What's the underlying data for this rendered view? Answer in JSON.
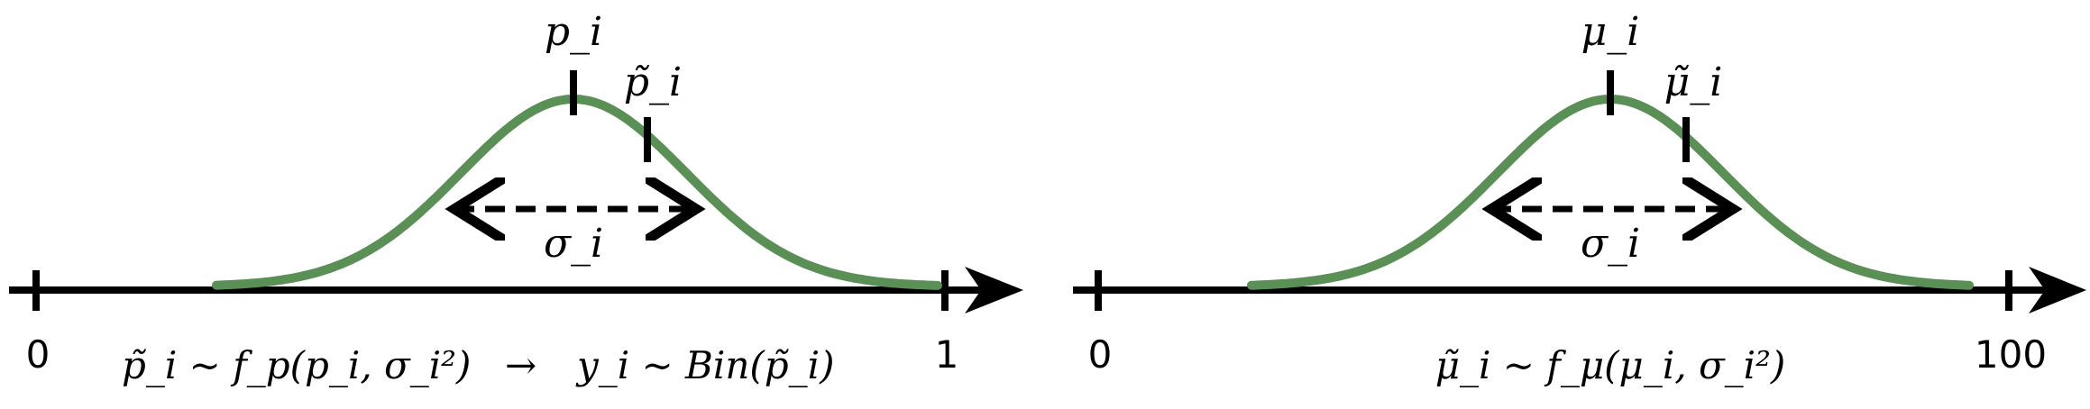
{
  "colors": {
    "curve": "#5a8f55",
    "axis": "#000000",
    "background": "#ffffff"
  },
  "panels": [
    {
      "axis_min_label": "0",
      "axis_max_label": "1",
      "mean_label": "p_i",
      "sample_label": "p̃_i",
      "spread_label": "σ_i",
      "formula_left": "p̃_i ~ f_p(p_i, σ_i²)",
      "formula_arrow": "→",
      "formula_right": "y_i ~ Bin(p̃_i)"
    },
    {
      "axis_min_label": "0",
      "axis_max_label": "100",
      "mean_label": "μ_i",
      "sample_label": "μ̃_i",
      "spread_label": "σ_i",
      "formula_left": "μ̃_i ~ f_μ(μ_i, σ_i²)"
    }
  ]
}
